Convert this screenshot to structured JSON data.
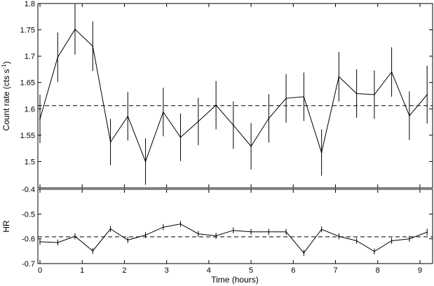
{
  "chart_data": [
    {
      "type": "line",
      "panel": "top",
      "ylabel": "Count rate (cts s",
      "ylabel_sup": "-1",
      "ylabel_tail": ")",
      "xlabel": "",
      "xlim": [
        -0.05,
        9.3
      ],
      "ylim": [
        1.45,
        1.8
      ],
      "yticks": [
        1.5,
        1.55,
        1.6,
        1.65,
        1.7,
        1.75,
        1.8
      ],
      "ytick_labels": [
        "1.5",
        "1.55",
        "1.6",
        "1.65",
        "1.7",
        "1.75",
        "1.8"
      ],
      "grid": false,
      "reference_line": 1.606,
      "series": [
        {
          "x": [
            0.0,
            0.42,
            0.83,
            1.25,
            1.67,
            2.08,
            2.5,
            2.92,
            3.33,
            3.75,
            4.17,
            4.58,
            5.0,
            5.42,
            5.83,
            6.25,
            6.67,
            7.08,
            7.5,
            7.92,
            8.33,
            8.75,
            9.17
          ],
          "y": [
            1.581,
            1.698,
            1.751,
            1.719,
            1.537,
            1.586,
            1.5,
            1.594,
            1.546,
            1.576,
            1.607,
            1.569,
            1.529,
            1.582,
            1.62,
            1.623,
            1.517,
            1.661,
            1.629,
            1.627,
            1.67,
            1.587,
            1.627
          ],
          "yerr": [
            0.046,
            0.047,
            0.048,
            0.047,
            0.044,
            0.046,
            0.044,
            0.046,
            0.045,
            0.045,
            0.046,
            0.045,
            0.044,
            0.046,
            0.046,
            0.046,
            0.044,
            0.047,
            0.046,
            0.046,
            0.047,
            0.046,
            0.055
          ]
        }
      ]
    },
    {
      "type": "line",
      "panel": "bottom",
      "ylabel": "HR",
      "xlabel": "Time (hours)",
      "xlim": [
        -0.05,
        9.3
      ],
      "ylim": [
        -0.7,
        -0.4
      ],
      "yticks": [
        -0.7,
        -0.6,
        -0.5,
        -0.4
      ],
      "ytick_labels": [
        "-0.7",
        "-0.6",
        "-0.5",
        "-0.4"
      ],
      "xticks": [
        0,
        1,
        2,
        3,
        4,
        5,
        6,
        7,
        8,
        9
      ],
      "xtick_labels": [
        "0",
        "1",
        "2",
        "3",
        "4",
        "5",
        "6",
        "7",
        "8",
        "9"
      ],
      "grid": false,
      "reference_line": -0.592,
      "series": [
        {
          "x": [
            0.0,
            0.42,
            0.83,
            1.25,
            1.67,
            2.08,
            2.5,
            2.92,
            3.33,
            3.75,
            4.17,
            4.58,
            5.0,
            5.42,
            5.83,
            6.25,
            6.67,
            7.08,
            7.5,
            7.92,
            8.33,
            8.75,
            9.17
          ],
          "y": [
            -0.612,
            -0.615,
            -0.59,
            -0.649,
            -0.56,
            -0.605,
            -0.585,
            -0.553,
            -0.54,
            -0.58,
            -0.588,
            -0.566,
            -0.572,
            -0.572,
            -0.572,
            -0.657,
            -0.562,
            -0.59,
            -0.608,
            -0.651,
            -0.608,
            -0.6,
            -0.573
          ],
          "yerr": [
            0.012,
            0.012,
            0.012,
            0.012,
            0.012,
            0.012,
            0.012,
            0.012,
            0.012,
            0.012,
            0.012,
            0.012,
            0.012,
            0.012,
            0.012,
            0.012,
            0.012,
            0.012,
            0.012,
            0.012,
            0.012,
            0.012,
            0.014
          ]
        }
      ]
    }
  ]
}
